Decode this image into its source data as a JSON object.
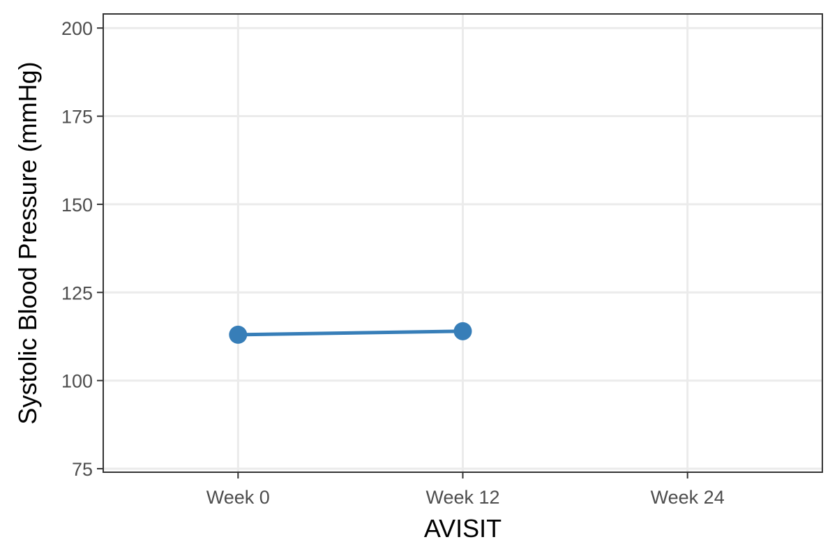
{
  "chart_data": {
    "type": "line",
    "xlabel": "AVISIT",
    "ylabel": "Systolic Blood Pressure (mmHg)",
    "categories": [
      "Week 0",
      "Week 12",
      "Week 24"
    ],
    "ylim": [
      75,
      200
    ],
    "yticks": [
      75,
      100,
      125,
      150,
      175,
      200
    ],
    "series": [
      {
        "x": [
          "Week 0",
          "Week 12"
        ],
        "values": [
          113,
          114
        ],
        "color": "#377eb8"
      }
    ],
    "grid": true,
    "legend": "none"
  }
}
